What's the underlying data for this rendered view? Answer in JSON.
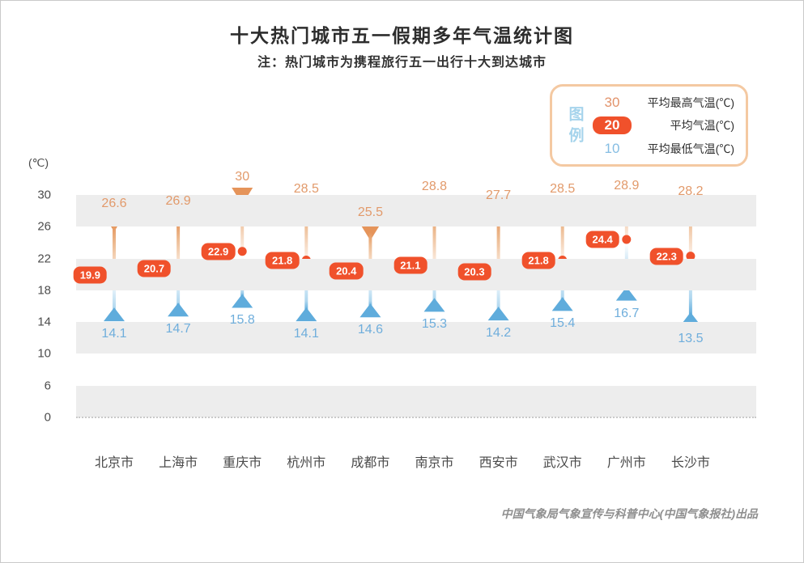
{
  "title": "十大热门城市五一假期多年气温统计图",
  "subtitle": "注：热门城市为携程旅行五一出行十大到达城市",
  "attribution": "中国气象局气象宣传与科普中心(中国气象报社)出品",
  "y_axis": {
    "unit": "(℃)",
    "ticks": [
      30,
      26,
      22,
      18,
      14,
      10,
      6,
      0
    ]
  },
  "legend": {
    "label": "图例",
    "items": [
      {
        "value": "30",
        "label": "平均最高气温(℃)",
        "type": "max"
      },
      {
        "value": "20",
        "label": "平均气温(℃)",
        "type": "avg"
      },
      {
        "value": "10",
        "label": "平均最低气温(℃)",
        "type": "min"
      }
    ]
  },
  "colors": {
    "max_text": "#E29A6B",
    "avg_accent": "#F0512B",
    "min_text": "#6FAEDC",
    "funnel_orange": "#E5945A",
    "stem_orange_mid": "#EDBC93",
    "stem_white": "#FFFFFF",
    "stem_blue_mid": "#AFD7EF",
    "triangle_blue": "#5FACDC",
    "band_gray": "#EDEDED",
    "axis_tick_triangle": "#9C9C9C",
    "legend_border": "#F4C9A2",
    "legend_label_blue": "#A6D4EC"
  },
  "chart_data": {
    "type": "scatter",
    "marker_style": "thermometer-range",
    "title": "十大热门城市五一假期多年气温统计图",
    "subtitle": "注：热门城市为携程旅行五一出行十大到达城市",
    "xlabel": "",
    "ylabel": "(℃)",
    "categories": [
      "北京市",
      "上海市",
      "重庆市",
      "杭州市",
      "成都市",
      "南京市",
      "西安市",
      "武汉市",
      "广州市",
      "长沙市"
    ],
    "series": [
      {
        "name": "平均最高气温(℃)",
        "values": [
          26.6,
          26.9,
          30,
          28.5,
          25.5,
          28.8,
          27.7,
          28.5,
          28.9,
          28.2
        ]
      },
      {
        "name": "平均气温(℃)",
        "values": [
          19.9,
          20.7,
          22.9,
          21.8,
          20.4,
          21.1,
          20.3,
          21.8,
          24.4,
          22.3
        ]
      },
      {
        "name": "平均最低气温(℃)",
        "values": [
          14.1,
          14.7,
          15.8,
          14.1,
          14.6,
          15.3,
          14.2,
          15.4,
          16.7,
          13.5
        ]
      }
    ],
    "yticks": [
      30,
      26,
      22,
      18,
      14,
      10,
      6,
      0
    ],
    "axis_note": "y axis tick intervals equally spaced in pixels; 6→0 span compressed to same height as 4° spans",
    "grid": "alternating gray bands between tick pairs 30-26, 22-18, 14-10, 6-0",
    "legend_position": "top-right"
  }
}
